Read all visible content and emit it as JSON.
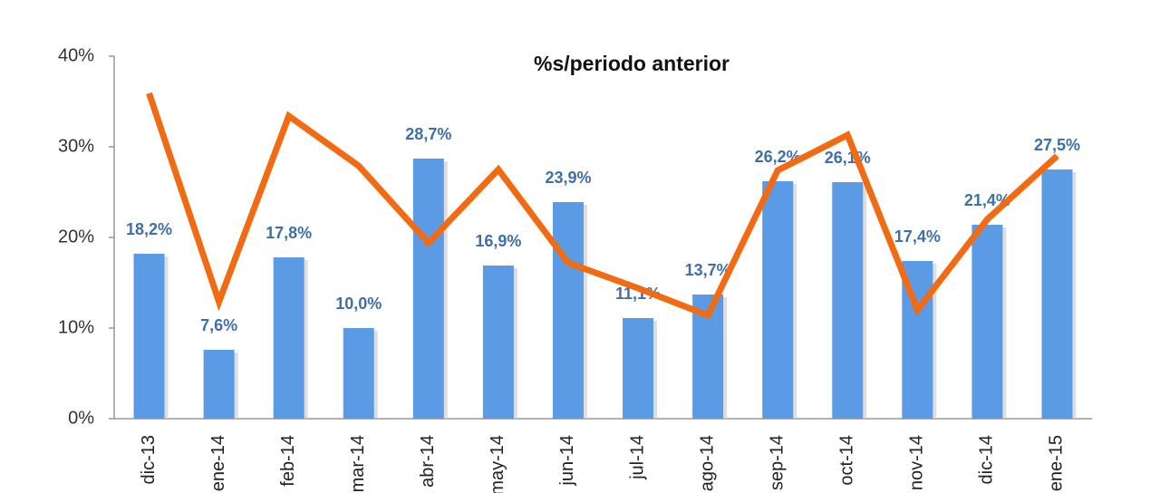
{
  "chart_data": {
    "type": "bar",
    "title": "%s/periodo anterior",
    "categories": [
      "dic-13",
      "ene-14",
      "feb-14",
      "mar-14",
      "abr-14",
      "may-14",
      "jun-14",
      "jul-14",
      "ago-14",
      "sep-14",
      "oct-14",
      "nov-14",
      "dic-14",
      "ene-15"
    ],
    "series": [
      {
        "type": "bar",
        "color": "#5b9be6",
        "values": [
          18.2,
          7.6,
          17.8,
          10.0,
          28.7,
          16.9,
          23.9,
          11.1,
          13.7,
          26.2,
          26.1,
          17.4,
          21.4,
          27.5
        ],
        "value_labels": [
          "18,2%",
          "7,6%",
          "17,8%",
          "10,0%",
          "28,7%",
          "16,9%",
          "23,9%",
          "11,1%",
          "13,7%",
          "26,2%",
          "26,1%",
          "17,4%",
          "21,4%",
          "27,5%"
        ]
      },
      {
        "type": "line",
        "color": "#f26b12",
        "values": [
          35.9,
          12.9,
          33.4,
          27.9,
          19.4,
          27.5,
          17.2,
          14.4,
          11.4,
          27.4,
          31.3,
          12.0,
          22.0,
          29.0
        ]
      }
    ],
    "ylim": [
      0,
      40
    ],
    "yticks": [
      {
        "value": 0,
        "label": "0%"
      },
      {
        "value": 10,
        "label": "10%"
      },
      {
        "value": 20,
        "label": "20%"
      },
      {
        "value": 30,
        "label": "30%"
      },
      {
        "value": 40,
        "label": "40%"
      }
    ]
  }
}
